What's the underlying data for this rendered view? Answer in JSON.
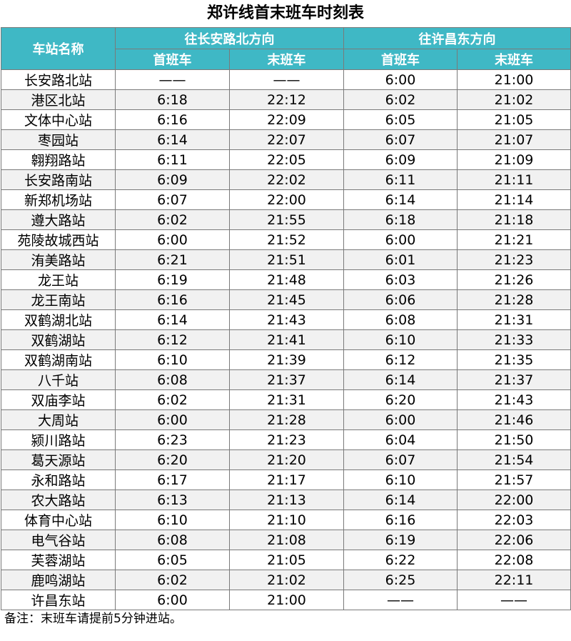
{
  "title": "郑许线首末班车时刻表",
  "headers": {
    "station": "车站名称",
    "dir1": "往长安路北方向",
    "dir2": "往许昌东方向",
    "first": "首班车",
    "last": "末班车"
  },
  "rows": [
    [
      "长安路北站",
      "——",
      "——",
      "6:00",
      "21:00"
    ],
    [
      "港区北站",
      "6:18",
      "22:12",
      "6:02",
      "21:02"
    ],
    [
      "文体中心站",
      "6:16",
      "22:09",
      "6:05",
      "21:05"
    ],
    [
      "枣园站",
      "6:14",
      "22:07",
      "6:07",
      "21:07"
    ],
    [
      "翱翔路站",
      "6:11",
      "22:05",
      "6:09",
      "21:09"
    ],
    [
      "长安路南站",
      "6:09",
      "22:02",
      "6:11",
      "21:11"
    ],
    [
      "新郑机场站",
      "6:07",
      "22:00",
      "6:14",
      "21:14"
    ],
    [
      "遵大路站",
      "6:02",
      "21:55",
      "6:18",
      "21:18"
    ],
    [
      "苑陵故城西站",
      "6:00",
      "21:52",
      "6:00",
      "21:21"
    ],
    [
      "洧美路站",
      "6:21",
      "21:51",
      "6:01",
      "21:23"
    ],
    [
      "龙王站",
      "6:19",
      "21:48",
      "6:03",
      "21:26"
    ],
    [
      "龙王南站",
      "6:16",
      "21:45",
      "6:06",
      "21:28"
    ],
    [
      "双鹤湖北站",
      "6:14",
      "21:43",
      "6:08",
      "21:31"
    ],
    [
      "双鹤湖站",
      "6:12",
      "21:41",
      "6:10",
      "21:33"
    ],
    [
      "双鹤湖南站",
      "6:10",
      "21:39",
      "6:12",
      "21:35"
    ],
    [
      "八千站",
      "6:08",
      "21:37",
      "6:14",
      "21:37"
    ],
    [
      "双庙李站",
      "6:02",
      "21:31",
      "6:20",
      "21:43"
    ],
    [
      "大周站",
      "6:00",
      "21:28",
      "6:00",
      "21:46"
    ],
    [
      "颍川路站",
      "6:23",
      "21:23",
      "6:04",
      "21:50"
    ],
    [
      "葛天源站",
      "6:20",
      "21:20",
      "6:07",
      "21:54"
    ],
    [
      "永和路站",
      "6:17",
      "21:17",
      "6:10",
      "21:57"
    ],
    [
      "农大路站",
      "6:13",
      "21:13",
      "6:14",
      "22:00"
    ],
    [
      "体育中心站",
      "6:10",
      "21:10",
      "6:16",
      "22:03"
    ],
    [
      "电气谷站",
      "6:08",
      "21:08",
      "6:19",
      "22:06"
    ],
    [
      "芙蓉湖站",
      "6:05",
      "21:05",
      "6:22",
      "22:08"
    ],
    [
      "鹿鸣湖站",
      "6:02",
      "21:02",
      "6:25",
      "22:11"
    ],
    [
      "许昌东站",
      "6:00",
      "21:00",
      "——",
      "——"
    ]
  ],
  "note": "备注：末班车请提前5分钟进站。",
  "colors": {
    "header_bg": "#3fb8c5",
    "header_text": "#ffffff",
    "stripe": "#f1f1f1"
  }
}
